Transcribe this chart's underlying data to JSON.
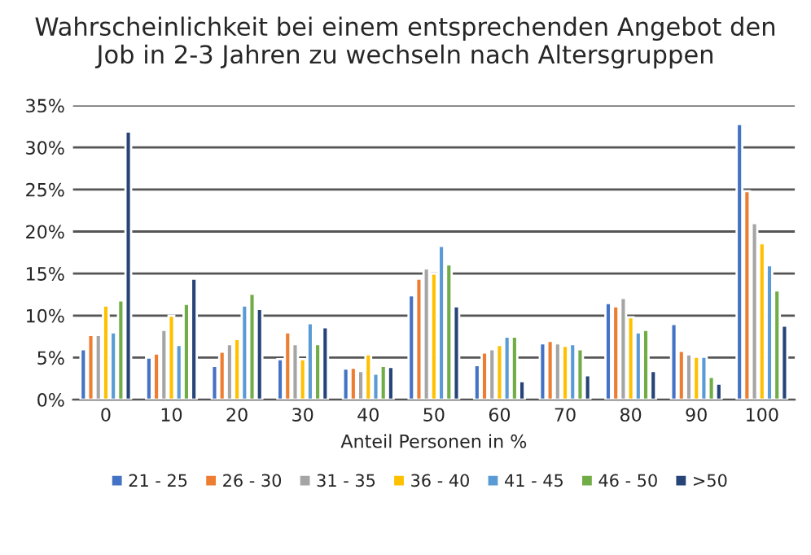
{
  "chart_data": {
    "type": "bar",
    "title": "Wahrscheinlichkeit bei einem entsprechenden Angebot den\nJob in 2-3 Jahren zu wechseln nach Altersgruppen",
    "xlabel": "Anteil Personen in %",
    "categories": [
      "0",
      "10",
      "20",
      "30",
      "40",
      "50",
      "60",
      "70",
      "80",
      "90",
      "100"
    ],
    "series": [
      {
        "name": "21 - 25",
        "color": "#4472c4",
        "values": [
          6,
          5,
          4,
          4.8,
          3.7,
          12.4,
          4.1,
          6.7,
          11.5,
          9,
          32.8
        ]
      },
      {
        "name": "26 - 30",
        "color": "#ed7d31",
        "values": [
          7.7,
          5.5,
          5.7,
          8,
          3.8,
          14.4,
          5.6,
          7,
          11.1,
          5.8,
          24.8
        ]
      },
      {
        "name": "31 - 35",
        "color": "#a5a5a5",
        "values": [
          7.7,
          8.3,
          6.6,
          6.6,
          3.4,
          15.6,
          6,
          6.7,
          12.1,
          5.4,
          21
        ]
      },
      {
        "name": "36 - 40",
        "color": "#ffc000",
        "values": [
          11.2,
          10,
          7.2,
          4.8,
          5.4,
          15,
          6.5,
          6.4,
          9.8,
          5.1,
          18.6
        ]
      },
      {
        "name": "41 - 45",
        "color": "#5b9bd5",
        "values": [
          8,
          6.5,
          11.2,
          9.1,
          3.1,
          18.3,
          7.5,
          6.6,
          8,
          5.1,
          16
        ]
      },
      {
        "name": "46 - 50",
        "color": "#70ad47",
        "values": [
          11.8,
          11.4,
          12.6,
          6.6,
          4,
          16.1,
          7.5,
          6,
          8.3,
          2.7,
          13
        ]
      },
      {
        "name": ">50",
        "color": "#264478",
        "values": [
          31.9,
          14.4,
          10.8,
          8.6,
          3.9,
          11.1,
          2.2,
          2.9,
          3.4,
          1.9,
          8.8
        ]
      }
    ],
    "ylim": [
      0,
      35
    ],
    "yticks": [
      {
        "value": 0,
        "label": "0%"
      },
      {
        "value": 5,
        "label": "5%"
      },
      {
        "value": 10,
        "label": "10%"
      },
      {
        "value": 15,
        "label": "15%"
      },
      {
        "value": 20,
        "label": "20%"
      },
      {
        "value": 25,
        "label": "25%"
      },
      {
        "value": 30,
        "label": "30%"
      },
      {
        "value": 35,
        "label": "35%"
      }
    ],
    "grid": "y",
    "legend": "bottom"
  }
}
